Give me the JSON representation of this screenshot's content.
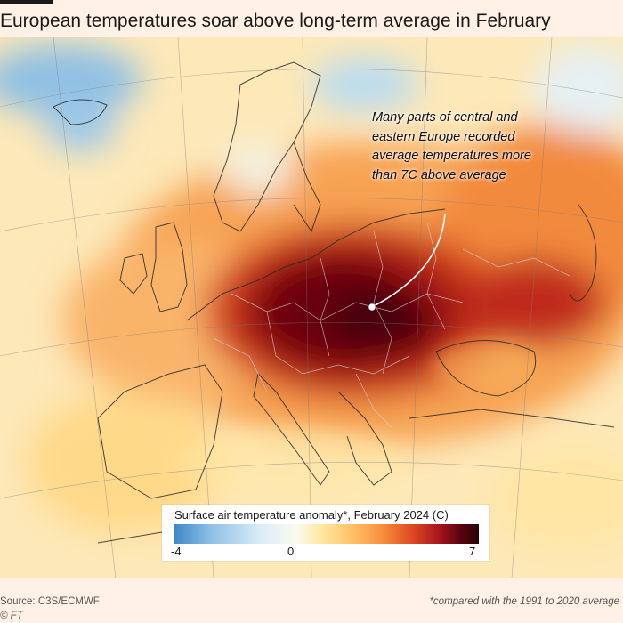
{
  "title": "European temperatures soar above long-term average in February",
  "annotation": "Many parts of central and eastern Europe recorded average temperatures more than 7C above average",
  "legend": {
    "title": "Surface air temperature anomaly*, February 2024 (C)",
    "min_label": "-4",
    "mid_label": "0",
    "max_label": "7"
  },
  "footer": {
    "source": "Source: C3S/ECMWF",
    "credit": "© FT",
    "footnote": "*compared with the 1991 to 2020 average"
  },
  "colors": {
    "cold": "#3f87c8",
    "neutral": "#fbfaf0",
    "warm": "#f8913e",
    "hot": "#2a0106"
  }
}
